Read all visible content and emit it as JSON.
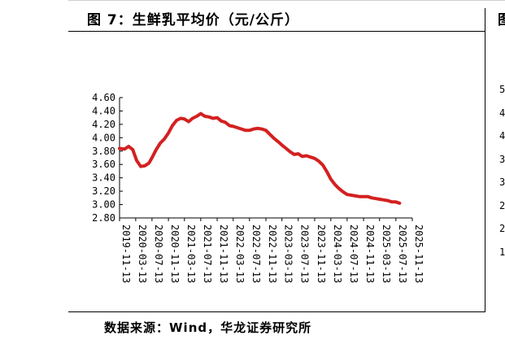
{
  "figure": {
    "title": "图 7：生鲜乳平均价（元/公斤）",
    "source": "数据来源：Wind，华龙证券研究所"
  },
  "right_panel": {
    "title_fragment": "图",
    "ticks": [
      "5",
      "4",
      "4",
      "3",
      "3",
      "2",
      "2",
      "1"
    ]
  },
  "chart_data": {
    "type": "line",
    "title": "",
    "xlabel": "",
    "ylabel": "",
    "ylim": [
      2.8,
      4.6
    ],
    "xlim": [
      "2019-11-13",
      "2025-11-13"
    ],
    "y_ticks": [
      "4.60",
      "4.40",
      "4.20",
      "4.00",
      "3.80",
      "3.60",
      "3.40",
      "3.20",
      "3.00",
      "2.80"
    ],
    "x_ticks": [
      "2019-11-13",
      "2020-03-13",
      "2020-07-13",
      "2020-11-13",
      "2021-03-13",
      "2021-07-13",
      "2021-11-13",
      "2022-03-13",
      "2022-07-13",
      "2022-11-13",
      "2023-03-13",
      "2023-07-13",
      "2023-11-13",
      "2024-03-13",
      "2024-07-13",
      "2024-11-13",
      "2025-03-13",
      "2025-07-13",
      "2025-11-13"
    ],
    "grid": false,
    "legend": "none",
    "series_color": "#d42020",
    "series": [
      {
        "points": [
          [
            "2019-11-13",
            3.84
          ],
          [
            "2019-12-20",
            3.83
          ],
          [
            "2020-01-20",
            3.87
          ],
          [
            "2020-02-20",
            3.82
          ],
          [
            "2020-03-20",
            3.66
          ],
          [
            "2020-04-20",
            3.57
          ],
          [
            "2020-05-20",
            3.58
          ],
          [
            "2020-06-20",
            3.62
          ],
          [
            "2020-07-13",
            3.7
          ],
          [
            "2020-08-13",
            3.82
          ],
          [
            "2020-09-13",
            3.92
          ],
          [
            "2020-10-13",
            3.98
          ],
          [
            "2020-11-13",
            4.07
          ],
          [
            "2020-12-13",
            4.18
          ],
          [
            "2021-01-13",
            4.26
          ],
          [
            "2021-02-13",
            4.29
          ],
          [
            "2021-03-13",
            4.28
          ],
          [
            "2021-04-13",
            4.24
          ],
          [
            "2021-05-13",
            4.29
          ],
          [
            "2021-06-13",
            4.32
          ],
          [
            "2021-07-13",
            4.36
          ],
          [
            "2021-08-13",
            4.32
          ],
          [
            "2021-09-13",
            4.31
          ],
          [
            "2021-10-13",
            4.29
          ],
          [
            "2021-11-13",
            4.3
          ],
          [
            "2021-12-13",
            4.25
          ],
          [
            "2022-01-13",
            4.23
          ],
          [
            "2022-02-13",
            4.18
          ],
          [
            "2022-03-13",
            4.17
          ],
          [
            "2022-04-13",
            4.15
          ],
          [
            "2022-05-13",
            4.13
          ],
          [
            "2022-06-13",
            4.11
          ],
          [
            "2022-07-13",
            4.11
          ],
          [
            "2022-08-13",
            4.13
          ],
          [
            "2022-09-13",
            4.14
          ],
          [
            "2022-10-13",
            4.13
          ],
          [
            "2022-11-13",
            4.11
          ],
          [
            "2022-12-13",
            4.05
          ],
          [
            "2023-01-13",
            3.99
          ],
          [
            "2023-02-13",
            3.94
          ],
          [
            "2023-03-13",
            3.89
          ],
          [
            "2023-04-13",
            3.84
          ],
          [
            "2023-05-13",
            3.79
          ],
          [
            "2023-06-13",
            3.75
          ],
          [
            "2023-07-13",
            3.76
          ],
          [
            "2023-08-13",
            3.72
          ],
          [
            "2023-09-13",
            3.73
          ],
          [
            "2023-10-13",
            3.71
          ],
          [
            "2023-11-13",
            3.69
          ],
          [
            "2023-12-13",
            3.65
          ],
          [
            "2024-01-13",
            3.59
          ],
          [
            "2024-02-13",
            3.49
          ],
          [
            "2024-03-13",
            3.38
          ],
          [
            "2024-04-13",
            3.3
          ],
          [
            "2024-05-13",
            3.24
          ],
          [
            "2024-06-13",
            3.19
          ],
          [
            "2024-07-13",
            3.15
          ],
          [
            "2024-08-13",
            3.14
          ],
          [
            "2024-09-13",
            3.13
          ],
          [
            "2024-10-13",
            3.12
          ],
          [
            "2024-11-13",
            3.12
          ],
          [
            "2024-12-13",
            3.12
          ],
          [
            "2025-01-13",
            3.1
          ],
          [
            "2025-02-13",
            3.09
          ],
          [
            "2025-03-13",
            3.08
          ],
          [
            "2025-04-13",
            3.07
          ],
          [
            "2025-05-13",
            3.06
          ],
          [
            "2025-06-13",
            3.04
          ],
          [
            "2025-07-13",
            3.04
          ],
          [
            "2025-08-10",
            3.02
          ]
        ]
      }
    ]
  }
}
